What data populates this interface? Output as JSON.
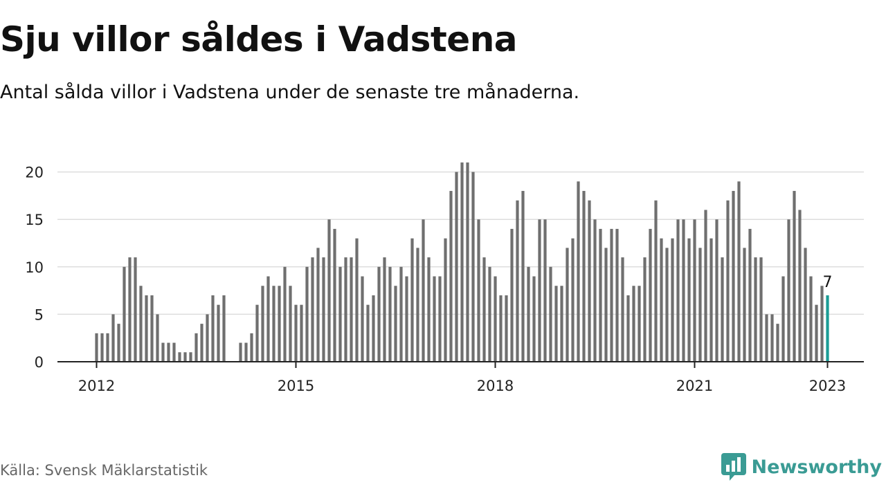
{
  "header": {
    "title": "Sju villor såldes i Vadstena",
    "subtitle": "Antal sålda villor i Vadstena under de senaste tre månaderna."
  },
  "footer": {
    "source": "Källa: Svensk Mäklarstatistik",
    "brand": "Newsworthy"
  },
  "colors": {
    "bar": "#6f6f6f",
    "highlight": "#1a9c95",
    "grid": "#dddddd",
    "axis": "#222222",
    "brand": "#3a9b94"
  },
  "icons": {
    "brand_logo": "newsworthy-logo-icon"
  },
  "chart_data": {
    "type": "bar",
    "title": "Sju villor såldes i Vadstena",
    "subtitle": "Antal sålda villor i Vadstena under de senaste tre månaderna.",
    "x_start": "2012-01",
    "x_end": "2023-01",
    "interval": "monthly",
    "ylim": [
      0,
      21
    ],
    "yticks": [
      0,
      5,
      10,
      15,
      20
    ],
    "xticks": [
      "2012",
      "2015",
      "2018",
      "2021",
      "2023"
    ],
    "grid": true,
    "legend": "none",
    "highlight_label": "7",
    "values": [
      3,
      3,
      3,
      5,
      4,
      10,
      11,
      11,
      8,
      7,
      7,
      5,
      2,
      2,
      2,
      1,
      1,
      1,
      3,
      4,
      5,
      7,
      6,
      7,
      0,
      0,
      2,
      2,
      3,
      6,
      8,
      9,
      8,
      8,
      10,
      8,
      6,
      6,
      10,
      11,
      12,
      11,
      15,
      14,
      10,
      11,
      11,
      13,
      9,
      6,
      7,
      10,
      11,
      10,
      8,
      10,
      9,
      13,
      12,
      15,
      11,
      9,
      9,
      13,
      18,
      20,
      21,
      21,
      20,
      15,
      11,
      10,
      9,
      7,
      7,
      14,
      17,
      18,
      10,
      9,
      15,
      15,
      10,
      8,
      8,
      12,
      13,
      19,
      18,
      17,
      15,
      14,
      12,
      14,
      14,
      11,
      7,
      8,
      8,
      11,
      14,
      17,
      13,
      12,
      13,
      15,
      15,
      13,
      15,
      12,
      16,
      13,
      15,
      11,
      17,
      18,
      19,
      12,
      14,
      11,
      11,
      5,
      5,
      4,
      9,
      15,
      18,
      16,
      12,
      9,
      6,
      8,
      7
    ]
  }
}
